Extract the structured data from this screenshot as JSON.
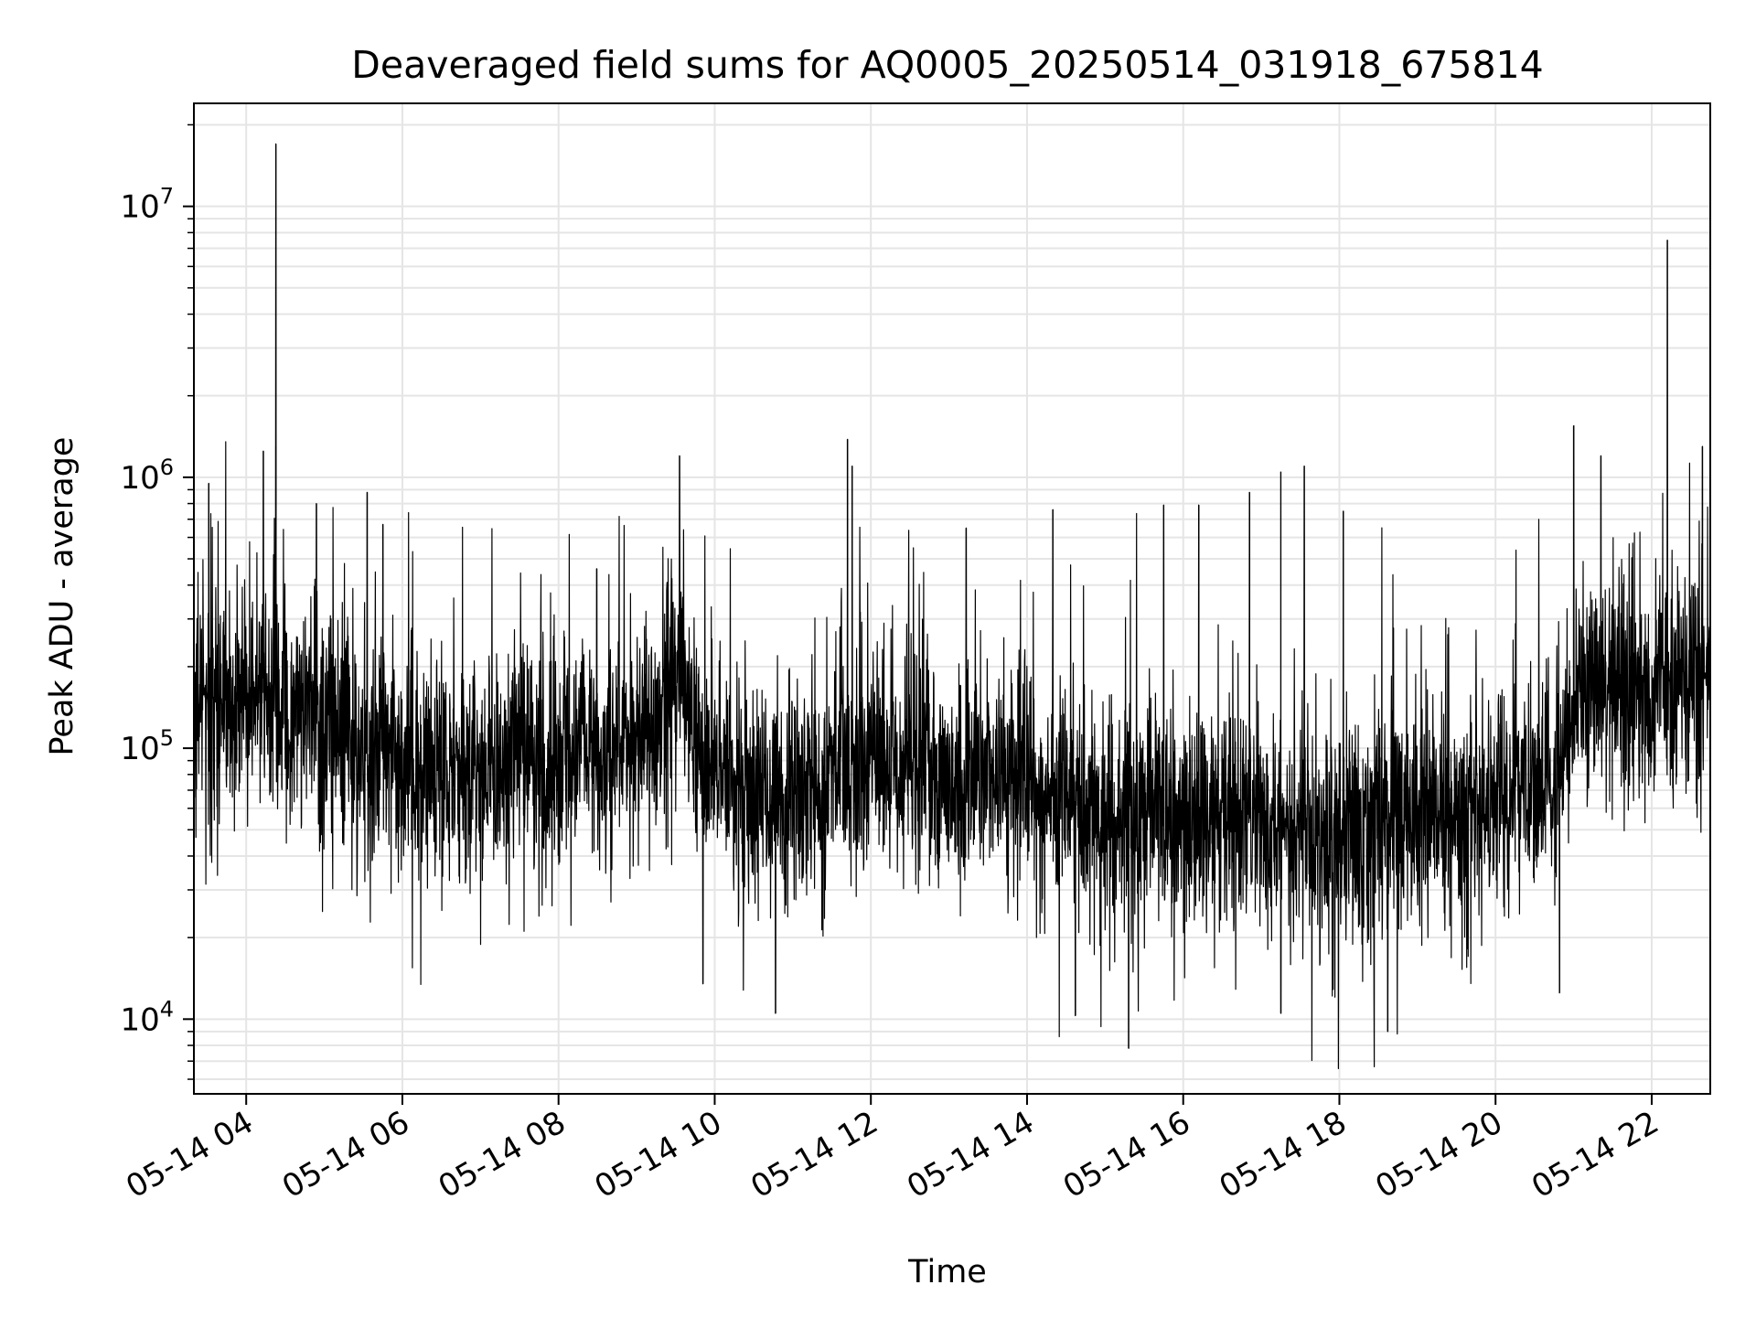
{
  "chart_data": {
    "type": "line",
    "title": "Deaveraged field sums for AQ0005_20250514_031918_675814",
    "xlabel": "Time",
    "ylabel": "Peak ADU - average",
    "yscale": "log",
    "ylim": [
      5300,
      24000000
    ],
    "xlim_hours": [
      3.33,
      22.75
    ],
    "grid": true,
    "line_color": "#000000",
    "grid_color": "#e5e5e5",
    "x_ticks": [
      {
        "hour": 4,
        "label": "05-14 04"
      },
      {
        "hour": 6,
        "label": "05-14 06"
      },
      {
        "hour": 8,
        "label": "05-14 08"
      },
      {
        "hour": 10,
        "label": "05-14 10"
      },
      {
        "hour": 12,
        "label": "05-14 12"
      },
      {
        "hour": 14,
        "label": "05-14 14"
      },
      {
        "hour": 16,
        "label": "05-14 16"
      },
      {
        "hour": 18,
        "label": "05-14 18"
      },
      {
        "hour": 20,
        "label": "05-14 20"
      },
      {
        "hour": 22,
        "label": "05-14 22"
      }
    ],
    "y_ticks": [
      {
        "value": 10000,
        "base": "10",
        "exp": "4"
      },
      {
        "value": 100000,
        "base": "10",
        "exp": "5"
      },
      {
        "value": 1000000,
        "base": "10",
        "exp": "6"
      },
      {
        "value": 10000000,
        "base": "10",
        "exp": "7"
      }
    ],
    "baseline": {
      "hours": [
        3.33,
        3.5,
        4.0,
        4.4,
        4.8,
        5.2,
        5.6,
        5.8,
        6.0,
        6.5,
        7.0,
        7.5,
        8.0,
        8.5,
        9.0,
        9.3,
        9.6,
        9.8,
        10.2,
        10.8,
        11.4,
        11.6,
        11.8,
        12.0,
        12.5,
        13.0,
        13.5,
        14.0,
        14.5,
        15.0,
        15.5,
        16.0,
        16.5,
        17.0,
        17.5,
        18.0,
        18.5,
        19.0,
        19.5,
        20.0,
        20.5,
        20.8,
        21.0,
        21.5,
        22.0,
        22.4,
        22.75
      ],
      "values": [
        140000,
        150000,
        160000,
        160000,
        130000,
        115000,
        95000,
        90000,
        85000,
        85000,
        85000,
        90000,
        95000,
        100000,
        110000,
        130000,
        190000,
        90000,
        70000,
        70000,
        75000,
        110000,
        85000,
        90000,
        85000,
        80000,
        75000,
        70000,
        65000,
        60000,
        60000,
        55000,
        55000,
        55000,
        50000,
        48000,
        52000,
        55000,
        55000,
        60000,
        65000,
        70000,
        150000,
        170000,
        180000,
        185000,
        180000
      ]
    },
    "spikes": [
      {
        "hour": 3.52,
        "value": 950000
      },
      {
        "hour": 4.22,
        "value": 1250000
      },
      {
        "hour": 4.38,
        "value": 1300000
      },
      {
        "hour": 4.38,
        "value": 17000000
      },
      {
        "hour": 4.9,
        "value": 800000
      },
      {
        "hour": 5.55,
        "value": 880000
      },
      {
        "hour": 5.75,
        "value": 670000
      },
      {
        "hour": 8.49,
        "value": 460000
      },
      {
        "hour": 9.55,
        "value": 1200000
      },
      {
        "hour": 11.7,
        "value": 1380000
      },
      {
        "hour": 11.76,
        "value": 1100000
      },
      {
        "hour": 13.22,
        "value": 650000
      },
      {
        "hour": 14.33,
        "value": 760000
      },
      {
        "hour": 15.75,
        "value": 790000
      },
      {
        "hour": 16.2,
        "value": 790000
      },
      {
        "hour": 16.85,
        "value": 880000
      },
      {
        "hour": 17.25,
        "value": 1050000
      },
      {
        "hour": 17.55,
        "value": 1100000
      },
      {
        "hour": 18.05,
        "value": 750000
      },
      {
        "hour": 21.0,
        "value": 1550000
      },
      {
        "hour": 21.35,
        "value": 1200000
      },
      {
        "hour": 22.2,
        "value": 7500000
      },
      {
        "hour": 22.65,
        "value": 1300000
      }
    ],
    "dips": [
      {
        "hour": 15.3,
        "value": 7800
      },
      {
        "hour": 18.62,
        "value": 9000
      },
      {
        "hour": 10.78,
        "value": 10500
      },
      {
        "hour": 14.62,
        "value": 10300
      },
      {
        "hour": 17.25,
        "value": 10500
      },
      {
        "hour": 9.85,
        "value": 13500
      },
      {
        "hour": 20.82,
        "value": 12500
      }
    ]
  }
}
